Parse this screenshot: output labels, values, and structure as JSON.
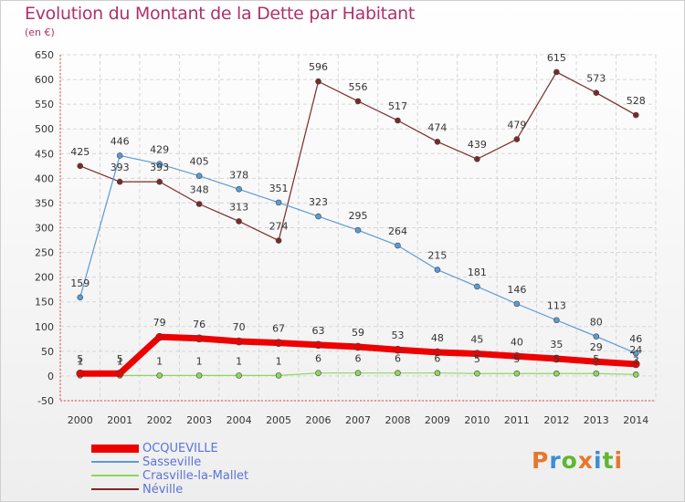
{
  "title": "Evolution du Montant de la Dette par Habitant",
  "unit": "(en €)",
  "logo": {
    "text": "Proxiti",
    "letter_colors": [
      "#e8762c",
      "#3a8fd6",
      "#5cb82f",
      "#e8762c",
      "#3a8fd6",
      "#5cb82f",
      "#e8762c"
    ]
  },
  "chart_data": {
    "type": "line",
    "title": "Evolution du Montant de la Dette par Habitant",
    "ylabel": "(en €)",
    "xlabel": "",
    "x": [
      "2000",
      "2001",
      "2002",
      "2003",
      "2004",
      "2005",
      "2006",
      "2007",
      "2008",
      "2009",
      "2010",
      "2011",
      "2012",
      "2013",
      "2014"
    ],
    "ylim": [
      -50,
      650
    ],
    "yticks": [
      -50,
      0,
      50,
      100,
      150,
      200,
      250,
      300,
      350,
      400,
      450,
      500,
      550,
      600,
      650
    ],
    "grid": true,
    "legend_position": "bottom-left",
    "series": [
      {
        "name": "OCQUEVILLE",
        "color": "#ee0000",
        "values": [
          5,
          5,
          79,
          76,
          70,
          67,
          63,
          59,
          53,
          48,
          45,
          40,
          35,
          29,
          24
        ],
        "labels": [
          "5",
          "5",
          "79",
          "76",
          "70",
          "67",
          "63",
          "59",
          "53",
          "48",
          "45",
          "40",
          "35",
          "29",
          "24"
        ]
      },
      {
        "name": "Sasseville",
        "color": "#5b9bd5",
        "values": [
          159,
          446,
          429,
          405,
          378,
          351,
          323,
          295,
          264,
          215,
          181,
          146,
          113,
          80,
          46
        ],
        "labels": [
          "159",
          "446",
          "429",
          "405",
          "378",
          "351",
          "323",
          "295",
          "264",
          "215",
          "181",
          "146",
          "113",
          "80",
          "46"
        ]
      },
      {
        "name": "Crasville-la-Mallet",
        "color": "#8fd65a",
        "values": [
          1,
          1,
          1,
          1,
          1,
          1,
          6,
          6,
          6,
          6,
          5,
          5,
          5,
          5,
          3
        ],
        "labels": [
          "1",
          "1",
          "1",
          "1",
          "1",
          "1",
          "6",
          "6",
          "6",
          "6",
          "5",
          "5",
          "5",
          "5",
          "3"
        ]
      },
      {
        "name": "Néville",
        "color": "#7a2a2a",
        "values": [
          425,
          393,
          393,
          348,
          313,
          274,
          596,
          556,
          517,
          474,
          439,
          479,
          615,
          573,
          528
        ],
        "labels": [
          "425",
          "393",
          "393",
          "348",
          "313",
          "274",
          "596",
          "556",
          "517",
          "474",
          "439",
          "479",
          "615",
          "573",
          "528"
        ]
      }
    ]
  }
}
